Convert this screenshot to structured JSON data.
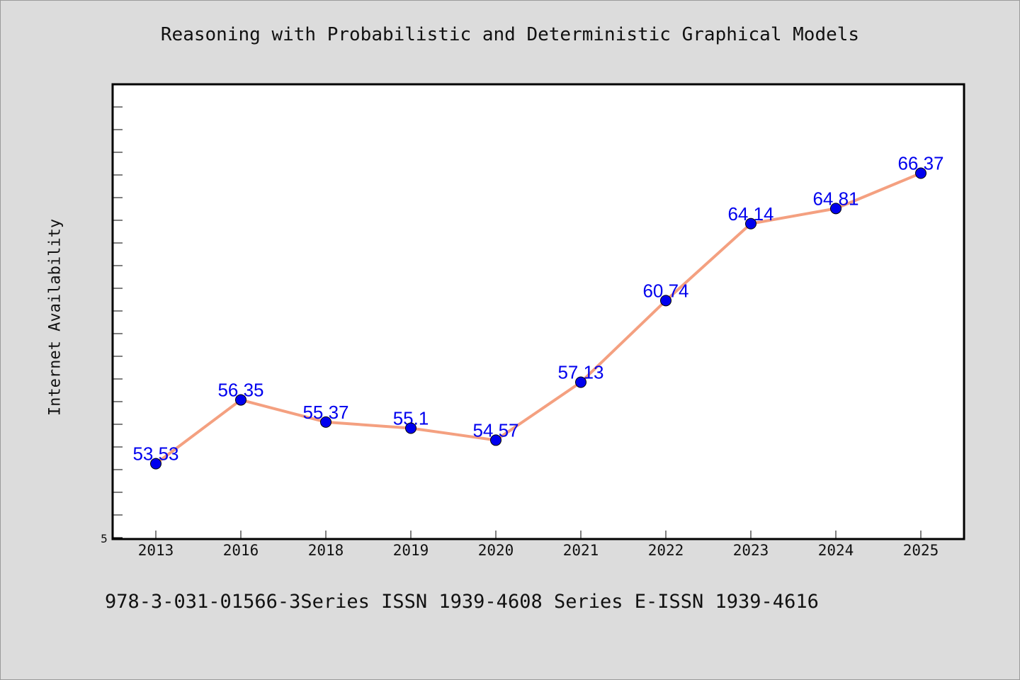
{
  "footer": {
    "text": "978-3-031-01566-3Series ISSN 1939-4608 Series E-ISSN 1939-4616"
  },
  "colors": {
    "background": "#dcdcdc",
    "plot_bg": "#ffffff",
    "line": "#f4a080",
    "marker": "#0000ee",
    "label": "#0000ee"
  },
  "chart_data": {
    "type": "line",
    "title": "Reasoning with Probabilistic and Deterministic Graphical Models",
    "xlabel": "",
    "ylabel": "Internet Availability",
    "categories": [
      "2013",
      "2016",
      "2018",
      "2019",
      "2020",
      "2021",
      "2022",
      "2023",
      "2024",
      "2025"
    ],
    "values": [
      53.53,
      56.35,
      55.37,
      55.1,
      54.57,
      57.13,
      60.74,
      64.14,
      64.81,
      66.37
    ],
    "data_labels": [
      "53.53",
      "56.35",
      "55.37",
      "55.1",
      "54.57",
      "57.13",
      "60.74",
      "64.14",
      "64.81",
      "66.37"
    ],
    "y_tick_labels": [
      "5"
    ],
    "ylim": [
      50.2,
      70.3
    ],
    "grid": false,
    "legend": "none"
  }
}
